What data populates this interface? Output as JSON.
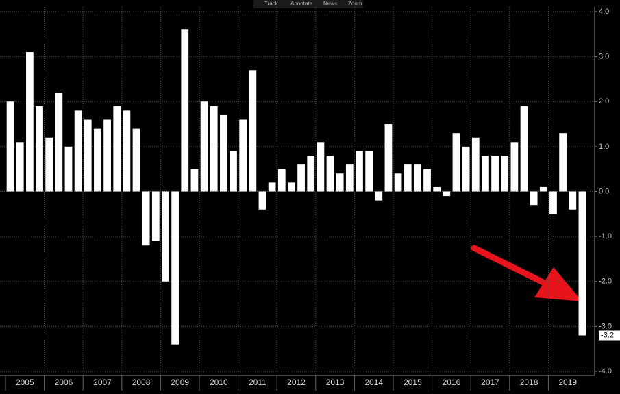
{
  "toolbar": [
    "Track",
    "Annotate",
    "News",
    "Zoom"
  ],
  "chart_data": {
    "type": "bar",
    "color": "#ffffff",
    "grid": true,
    "years": [
      "2005",
      "2006",
      "2007",
      "2008",
      "2009",
      "2010",
      "2011",
      "2012",
      "2013",
      "2014",
      "2015",
      "2016",
      "2017",
      "2018",
      "2019"
    ],
    "values": [
      2.0,
      1.1,
      3.1,
      1.9,
      1.2,
      2.2,
      1.0,
      1.8,
      1.6,
      1.4,
      1.6,
      1.9,
      1.8,
      1.4,
      -1.2,
      -1.1,
      -2.0,
      -3.4,
      3.6,
      0.5,
      2.0,
      1.9,
      1.7,
      0.9,
      1.6,
      2.7,
      -0.4,
      0.2,
      0.5,
      0.2,
      0.6,
      0.8,
      1.1,
      0.8,
      0.4,
      0.6,
      0.9,
      0.9,
      -0.2,
      1.5,
      0.4,
      0.6,
      0.6,
      0.5,
      0.1,
      -0.1,
      1.3,
      1.0,
      1.2,
      0.8,
      0.8,
      0.8,
      1.1,
      1.9,
      -0.3,
      0.1,
      -0.5,
      1.3,
      -0.4,
      -3.2
    ],
    "ylim": [
      -4,
      4
    ],
    "yticks": [
      {
        "value": 4,
        "label": "4.0"
      },
      {
        "value": 3,
        "label": "3.0"
      },
      {
        "value": 2,
        "label": "2.0"
      },
      {
        "value": 1,
        "label": "1.0"
      },
      {
        "value": 0,
        "label": "0.0"
      },
      {
        "value": -1,
        "label": "-1.0"
      },
      {
        "value": -2,
        "label": "-2.0"
      },
      {
        "value": -3,
        "label": "-3.0"
      },
      {
        "value": -4,
        "label": "-4.0"
      }
    ]
  }
}
